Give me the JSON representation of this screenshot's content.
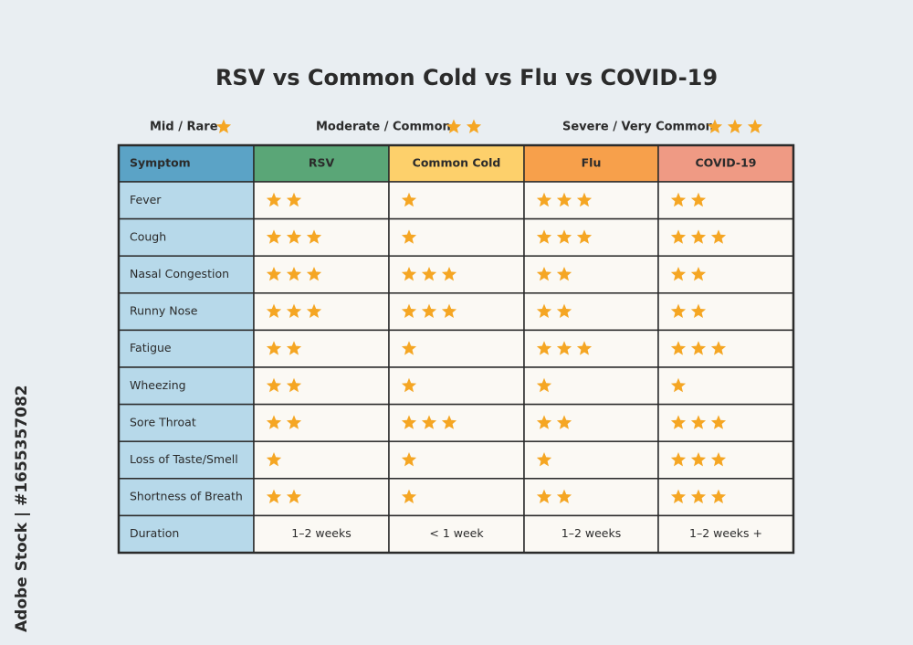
{
  "title": "RSV vs Common Cold vs Flu vs COVID-19",
  "legend": [
    {
      "label": "Mid / Rare",
      "stars": 1
    },
    {
      "label": "Moderate / Common",
      "stars": 2
    },
    {
      "label": "Severe / Very Common",
      "stars": 3
    }
  ],
  "table": {
    "header": [
      "Symptom",
      "RSV",
      "Common Cold",
      "Flu",
      "COVID-19"
    ],
    "rows": [
      [
        "Fever",
        2,
        1,
        3,
        2
      ],
      [
        "Cough",
        3,
        1,
        3,
        3
      ],
      [
        "Nasal Congestion",
        3,
        3,
        2,
        2
      ],
      [
        "Runny Nose",
        3,
        3,
        2,
        2
      ],
      [
        "Fatigue",
        2,
        1,
        3,
        3
      ],
      [
        "Wheezing",
        2,
        1,
        1,
        1
      ],
      [
        "Sore Throat",
        2,
        3,
        2,
        3
      ],
      [
        "Loss of Taste/Smell",
        1,
        1,
        1,
        3
      ],
      [
        "Shortness of Breath",
        2,
        1,
        2,
        3
      ],
      [
        "Duration",
        "1–2 weeks",
        "< 1 week",
        "1–2 weeks",
        "1–2 weeks +"
      ]
    ]
  },
  "watermark": "Adobe Stock | #1655357082"
}
